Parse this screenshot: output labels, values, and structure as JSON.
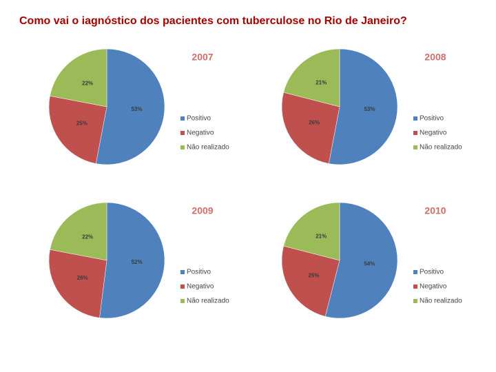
{
  "title": "Como vai o iagnóstico dos pacientes com tuberculose no Rio de Janeiro?",
  "chart_data": [
    {
      "type": "pie",
      "title": "2007",
      "categories": [
        "Positivo",
        "Negativo",
        "Não realizado"
      ],
      "colors": [
        "#4f81bd",
        "#c0504d",
        "#9bbb59"
      ],
      "values": [
        53,
        25,
        22
      ],
      "value_labels": [
        "53%",
        "25%",
        "22%"
      ]
    },
    {
      "type": "pie",
      "title": "2008",
      "categories": [
        "Positivo",
        "Negativo",
        "Não realizado"
      ],
      "colors": [
        "#4f81bd",
        "#c0504d",
        "#9bbb59"
      ],
      "values": [
        53,
        26,
        21
      ],
      "value_labels": [
        "53%",
        "26%",
        "21%"
      ]
    },
    {
      "type": "pie",
      "title": "2009",
      "categories": [
        "Positivo",
        "Negativo",
        "Não realizado"
      ],
      "colors": [
        "#4f81bd",
        "#c0504d",
        "#9bbb59"
      ],
      "values": [
        52,
        26,
        22
      ],
      "value_labels": [
        "52%",
        "26%",
        "22%"
      ]
    },
    {
      "type": "pie",
      "title": "2010",
      "categories": [
        "Positivo",
        "Negativo",
        "Não realizado"
      ],
      "colors": [
        "#4f81bd",
        "#c0504d",
        "#9bbb59"
      ],
      "values": [
        54,
        25,
        21
      ],
      "value_labels": [
        "54%",
        "25%",
        "21%"
      ]
    }
  ]
}
